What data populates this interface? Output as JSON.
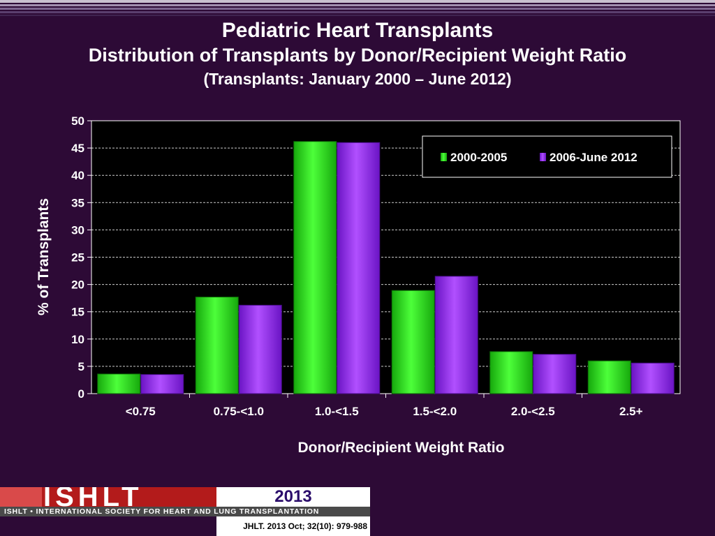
{
  "header": {
    "title": "Pediatric Heart Transplants",
    "subtitle": "Distribution of Transplants by Donor/Recipient Weight Ratio",
    "period": "(Transplants: January 2000 – June 2012)"
  },
  "colors": {
    "background": "#2d0a36",
    "plot_bg": "#000000",
    "series1": "#2ee81a",
    "series2": "#9a2cf2"
  },
  "chart_data": {
    "type": "bar",
    "categories": [
      "<0.75",
      "0.75-<1.0",
      "1.0-<1.5",
      "1.5-<2.0",
      "2.0-<2.5",
      "2.5+"
    ],
    "series": [
      {
        "name": "2000-2005",
        "values": [
          3.6,
          17.7,
          46.2,
          18.9,
          7.7,
          6.0
        ]
      },
      {
        "name": "2006-June 2012",
        "values": [
          3.5,
          16.2,
          46.0,
          21.5,
          7.2,
          5.6
        ]
      }
    ],
    "xlabel": "Donor/Recipient Weight Ratio",
    "ylabel": "% of Transplants",
    "ylim": [
      0,
      50
    ],
    "yticks": [
      0,
      5,
      10,
      15,
      20,
      25,
      30,
      35,
      40,
      45,
      50
    ],
    "grid": true,
    "legend_position": "top-right"
  },
  "footer": {
    "logo_text": "ISHLT",
    "banner": "ISHLT • INTERNATIONAL SOCIETY FOR HEART AND LUNG TRANSPLANTATION",
    "year": "2013",
    "reference": "JHLT. 2013 Oct; 32(10): 979-988"
  }
}
